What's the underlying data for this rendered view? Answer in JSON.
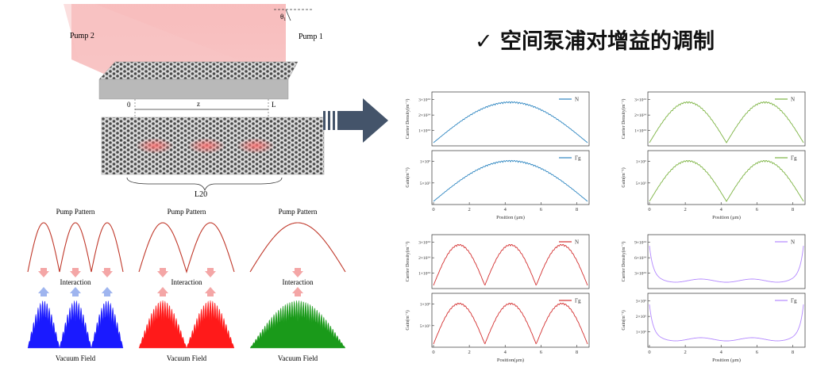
{
  "title": "✓ 空间泵浦对增益的调制",
  "setup": {
    "pump1": "Pump 1",
    "pump2": "Pump 2",
    "theta": "θ₁",
    "start": "0",
    "mid": "z",
    "end": "L",
    "cavity": "L20"
  },
  "patterns": [
    {
      "top": "Pump Pattern",
      "middle": "Interaction",
      "bottom": "Vacuum Field",
      "field_color": "#1a1aff",
      "pump_periods": 3
    },
    {
      "top": "Pump Pattern",
      "middle": "Interaction",
      "bottom": "Vacuum Field",
      "field_color": "#ff1a1a",
      "pump_periods": 2
    },
    {
      "top": "Pump Pattern",
      "middle": "Interaction",
      "bottom": "Vacuum Field",
      "field_color": "#1a9a1a",
      "pump_periods": 1
    }
  ],
  "colors": {
    "blue": "#2e86c1",
    "green": "#7cb342",
    "red": "#d32f2f",
    "purple": "#b388ff",
    "arrow": "#44546a"
  },
  "chart_data": [
    {
      "type": "line",
      "position": "top-left",
      "periods": 1,
      "color": "#2e86c1",
      "xlabel": "Position (μm)",
      "xticks": [
        "0",
        "2",
        "4",
        "6",
        "8"
      ],
      "xlim": [
        0,
        8.6
      ],
      "top": {
        "ylabel": "Carrier Density(m⁻³)",
        "legend": "N",
        "yticks": [
          "1×10²⁴",
          "2×10²⁴",
          "3×10²⁴"
        ],
        "ylim": [
          0,
          3.5
        ]
      },
      "bottom": {
        "ylabel": "Gain(m⁻¹)",
        "legend": "Γg",
        "yticks": [
          "5×10⁵",
          "1×10⁶"
        ],
        "ylim": [
          0,
          1.2
        ]
      }
    },
    {
      "type": "line",
      "position": "top-right",
      "periods": 2,
      "color": "#7cb342",
      "xlabel": "Position (μm)",
      "xticks": [
        "0",
        "2",
        "4",
        "6",
        "8"
      ],
      "xlim": [
        0,
        8.6
      ],
      "top": {
        "ylabel": "Carrier Density(m⁻³)",
        "legend": "N",
        "yticks": [
          "1×10²⁴",
          "2×10²⁴",
          "3×10²⁴"
        ],
        "ylim": [
          0,
          3.5
        ]
      },
      "bottom": {
        "ylabel": "Gain(m⁻¹)",
        "legend": "Γg",
        "yticks": [
          "5×10⁵",
          "1×10⁶"
        ],
        "ylim": [
          0,
          1.2
        ]
      }
    },
    {
      "type": "line",
      "position": "bottom-left",
      "periods": 3,
      "color": "#d32f2f",
      "xlabel": "Position(μm)",
      "xticks": [
        "0",
        "2",
        "4",
        "6",
        "8"
      ],
      "xlim": [
        0,
        8.6
      ],
      "top": {
        "ylabel": "Carrier Density(m⁻³)",
        "legend": "N",
        "yticks": [
          "1×10²⁴",
          "2×10²⁴",
          "3×10²⁴"
        ],
        "ylim": [
          0,
          3.5
        ]
      },
      "bottom": {
        "ylabel": "Gain(m⁻¹)",
        "legend": "Γg",
        "yticks": [
          "5×10⁵",
          "1×10⁶"
        ],
        "ylim": [
          0,
          1.2
        ]
      }
    },
    {
      "type": "line",
      "position": "bottom-right",
      "periods": 0,
      "color": "#b388ff",
      "xlabel": "Position (μm)",
      "xticks": [
        "0",
        "2",
        "4",
        "6",
        "8"
      ],
      "xlim": [
        0,
        8.6
      ],
      "top": {
        "ylabel": "Carrier Density(m⁻³)",
        "legend": "N",
        "yticks": [
          "3×10²⁴",
          "6×10²⁴",
          "9×10²⁴"
        ],
        "ylim": [
          0,
          10
        ]
      },
      "bottom": {
        "ylabel": "Gain(m⁻¹)",
        "legend": "Γg",
        "yticks": [
          "1×10⁶",
          "2×10⁶",
          "3×10⁶"
        ],
        "ylim": [
          0,
          3.5
        ]
      }
    }
  ]
}
